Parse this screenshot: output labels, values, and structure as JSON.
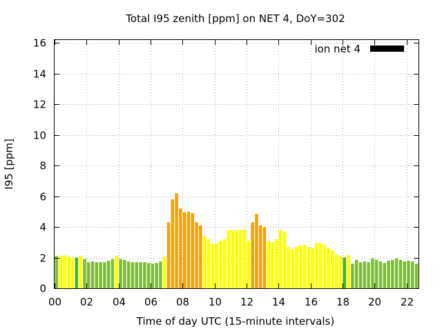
{
  "chart_data": {
    "type": "bar",
    "title": "Total I95 zenith [ppm] on NET 4, DoY=302",
    "xlabel": "Time of day UTC (15-minute intervals)",
    "ylabel": "I95 [ppm]",
    "xlim": [
      0,
      22.75
    ],
    "ylim": [
      0,
      16.2
    ],
    "x_ticks": [
      "00",
      "02",
      "04",
      "06",
      "08",
      "10",
      "12",
      "14",
      "16",
      "18",
      "20",
      "22"
    ],
    "y_ticks": [
      "0",
      "2",
      "4",
      "6",
      "8",
      "10",
      "12",
      "14",
      "16"
    ],
    "grid": true,
    "legend": {
      "label": "ion net 4",
      "position": "top-right",
      "color": "#000000"
    },
    "level_colors": {
      "low": "#7ebd3a",
      "medium": "#ffff00",
      "high": "#f5a10c",
      "baseline": "#4caf2a"
    },
    "x_start_hour": 0,
    "x_step_hours": 0.25,
    "values": [
      2.1,
      2.1,
      2.15,
      2.1,
      2.0,
      2.0,
      2.1,
      1.9,
      1.7,
      1.75,
      1.7,
      1.7,
      1.7,
      1.8,
      1.9,
      2.1,
      1.9,
      1.85,
      1.75,
      1.7,
      1.7,
      1.7,
      1.7,
      1.65,
      1.6,
      1.65,
      1.75,
      2.05,
      4.3,
      5.8,
      6.2,
      5.2,
      4.95,
      5.0,
      4.9,
      4.3,
      4.1,
      3.4,
      3.2,
      2.9,
      2.9,
      3.1,
      3.2,
      3.8,
      3.8,
      3.8,
      3.8,
      3.8,
      3.1,
      4.3,
      4.85,
      4.1,
      4.0,
      3.1,
      3.0,
      3.2,
      3.8,
      3.7,
      2.7,
      2.55,
      2.7,
      2.8,
      2.85,
      2.7,
      2.6,
      2.95,
      2.95,
      2.85,
      2.6,
      2.45,
      2.2,
      2.1,
      2.0,
      2.15,
      1.6,
      1.85,
      1.7,
      1.75,
      1.7,
      1.95,
      1.85,
      1.75,
      1.65,
      1.8,
      1.85,
      1.95,
      1.85,
      1.75,
      1.8,
      1.75,
      1.6
    ],
    "categories": [
      "low",
      "medium",
      "medium",
      "medium",
      "medium",
      "baseline",
      "medium",
      "low",
      "low",
      "low",
      "low",
      "low",
      "low",
      "low",
      "low",
      "medium",
      "low",
      "low",
      "low",
      "low",
      "low",
      "low",
      "low",
      "low",
      "low",
      "low",
      "low",
      "medium",
      "high",
      "high",
      "high",
      "high",
      "high",
      "high",
      "high",
      "high",
      "high",
      "medium",
      "medium",
      "medium",
      "medium",
      "medium",
      "medium",
      "medium",
      "medium",
      "medium",
      "medium",
      "medium",
      "medium",
      "high",
      "high",
      "high",
      "high",
      "medium",
      "medium",
      "medium",
      "medium",
      "medium",
      "medium",
      "medium",
      "medium",
      "medium",
      "medium",
      "medium",
      "medium",
      "medium",
      "medium",
      "medium",
      "medium",
      "medium",
      "medium",
      "medium",
      "baseline",
      "medium",
      "low",
      "low",
      "low",
      "low",
      "low",
      "low",
      "low",
      "low",
      "low",
      "low",
      "low",
      "low",
      "low",
      "low",
      "low",
      "low",
      "low"
    ]
  }
}
